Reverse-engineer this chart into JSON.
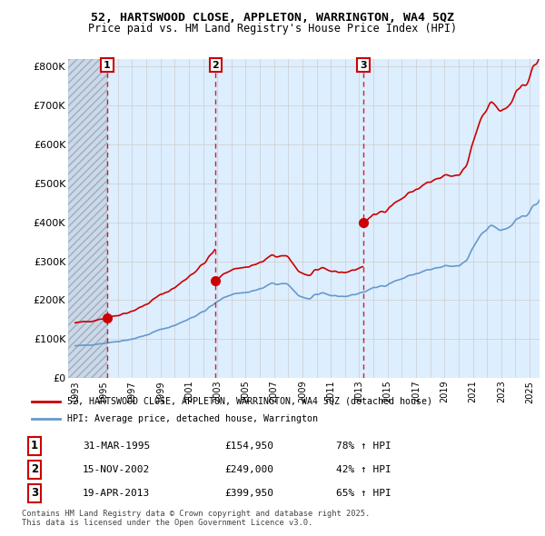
{
  "title": "52, HARTSWOOD CLOSE, APPLETON, WARRINGTON, WA4 5QZ",
  "subtitle": "Price paid vs. HM Land Registry's House Price Index (HPI)",
  "transactions": [
    {
      "num": 1,
      "date": "31-MAR-1995",
      "price": 154950,
      "hpi_pct": "78%",
      "x_year": 1995.25
    },
    {
      "num": 2,
      "date": "15-NOV-2002",
      "price": 249000,
      "hpi_pct": "42%",
      "x_year": 2002.88
    },
    {
      "num": 3,
      "date": "19-APR-2013",
      "price": 399950,
      "hpi_pct": "65%",
      "x_year": 2013.29
    }
  ],
  "legend_line1": "52, HARTSWOOD CLOSE, APPLETON, WARRINGTON, WA4 5QZ (detached house)",
  "legend_line2": "HPI: Average price, detached house, Warrington",
  "footnote1": "Contains HM Land Registry data © Crown copyright and database right 2025.",
  "footnote2": "This data is licensed under the Open Government Licence v3.0.",
  "table": [
    {
      "num": 1,
      "date": "31-MAR-1995",
      "price": "£154,950",
      "hpi": "78% ↑ HPI"
    },
    {
      "num": 2,
      "date": "15-NOV-2002",
      "price": "£249,000",
      "hpi": "42% ↑ HPI"
    },
    {
      "num": 3,
      "date": "19-APR-2013",
      "price": "£399,950",
      "hpi": "65% ↑ HPI"
    }
  ],
  "red_color": "#cc0000",
  "blue_color": "#6699cc",
  "grid_color": "#cccccc",
  "background_color": "#ffffff",
  "plot_bg_color": "#ddeeff",
  "hatch_bg_color": "#ccd8e8",
  "ylim": [
    0,
    820000
  ],
  "xlim_start": 1992.5,
  "xlim_end": 2025.7,
  "hatch_end": 1995.25
}
